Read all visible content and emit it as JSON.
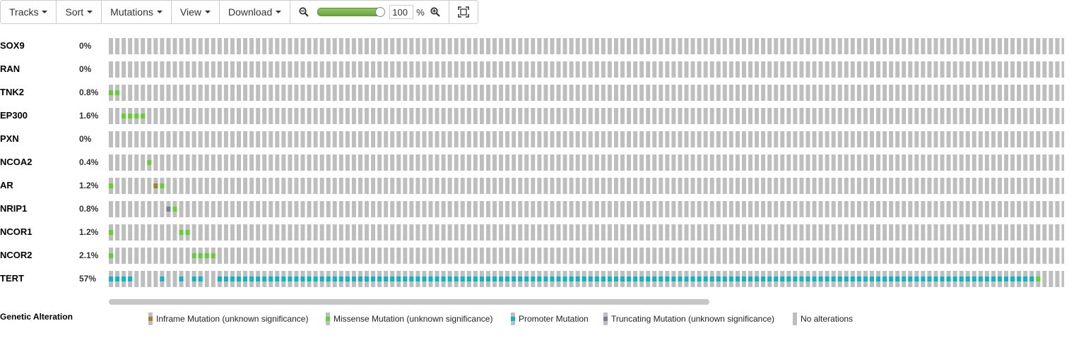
{
  "toolbar": {
    "tracks": "Tracks",
    "sort": "Sort",
    "mutations": "Mutations",
    "view": "View",
    "download": "Download",
    "zoom_value": "100",
    "zoom_unit": "%",
    "zoom_slider_level": 1.0,
    "zoom_out_icon": "zoom-out-icon",
    "zoom_in_icon": "zoom-in-icon",
    "fit_icon": "fit-to-screen-icon"
  },
  "colors": {
    "no_alteration": "#bebebe",
    "inframe": "#a68028",
    "missense": "#5dd32c",
    "promoter": "#00b7ce",
    "truncating": "#708090"
  },
  "tracks": [
    {
      "gene": "SOX9",
      "percent": "0%"
    },
    {
      "gene": "RAN",
      "percent": "0%"
    },
    {
      "gene": "TNK2",
      "percent": "0.8%"
    },
    {
      "gene": "EP300",
      "percent": "1.6%"
    },
    {
      "gene": "PXN",
      "percent": "0%"
    },
    {
      "gene": "NCOA2",
      "percent": "0.4%"
    },
    {
      "gene": "AR",
      "percent": "1.2%"
    },
    {
      "gene": "NRIP1",
      "percent": "0.8%"
    },
    {
      "gene": "NCOR1",
      "percent": "1.2%"
    },
    {
      "gene": "NCOR2",
      "percent": "2.1%"
    },
    {
      "gene": "TERT",
      "percent": "57%"
    }
  ],
  "legend": {
    "title": "Genetic Alteration",
    "items": [
      {
        "label": "Inframe Mutation (unknown significance)",
        "type": "inframe"
      },
      {
        "label": "Missense Mutation (unknown significance)",
        "type": "missense"
      },
      {
        "label": "Promoter Mutation",
        "type": "promoter"
      },
      {
        "label": "Truncating Mutation (unknown significance)",
        "type": "truncating"
      },
      {
        "label": "No alterations",
        "type": "none"
      }
    ]
  }
}
